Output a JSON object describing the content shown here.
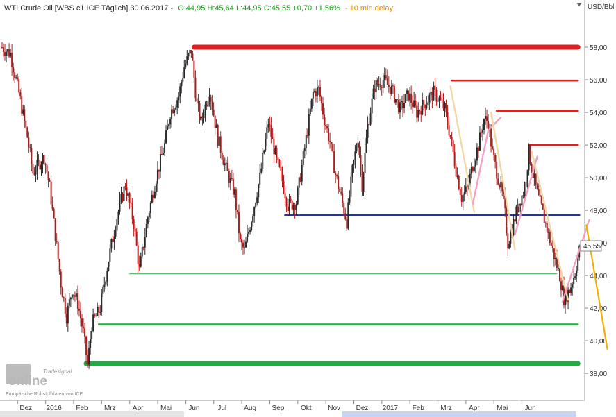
{
  "header": {
    "instrument": "WTI Crude Oil [WBS c1 ICE Täglich] 30.06.2017 -",
    "ohlc": "O:44,95 H:45,64 L:44,95 C:45,55 +0,70 +1,56%",
    "delay": "- 10 min delay",
    "unit": "USD/Bbl"
  },
  "logo": {
    "brand_small": "Tradesignal",
    "brand_big": "online",
    "source": "Europäische Rohstoffdaten von ICE"
  },
  "last_price_label": "45,55",
  "colors": {
    "up": "#2a2a2a",
    "down": "#b01c1c",
    "resistance": "#e02020",
    "support": "#22aa44",
    "pivot": "#2233aa",
    "trend_pink": "#f4a0c0",
    "trend_tan": "#f0d8a8",
    "trend_orange": "#f0b000"
  },
  "chart_data": {
    "type": "candlestick",
    "title": "WTI Crude Oil [WBS c1 ICE Täglich] 30.06.2017",
    "ylabel": "USD/Bbl",
    "ylim": [
      36.6,
      60.3
    ],
    "yticks": [
      "38,00",
      "40,00",
      "42,00",
      "44,00",
      "46,00",
      "48,00",
      "50,00",
      "52,00",
      "54,00",
      "56,00",
      "58,00"
    ],
    "xticks": [
      "Dez",
      "2016",
      "Feb",
      "Mrz",
      "Apr",
      "Mai",
      "Jun",
      "Jul",
      "Aug",
      "Sep",
      "Okt",
      "Nov",
      "Dez",
      "2017",
      "Feb",
      "Mrz",
      "Apr",
      "Mai",
      "Jun"
    ],
    "last": {
      "open": 44.95,
      "high": 45.64,
      "low": 44.95,
      "close": 45.55,
      "change": 0.7,
      "change_pct": 1.56
    },
    "price_path": [
      {
        "m": 0.0,
        "p": 58.0
      },
      {
        "m": 0.3,
        "p": 57.6
      },
      {
        "m": 0.6,
        "p": 55.2
      },
      {
        "m": 0.9,
        "p": 52.5
      },
      {
        "m": 1.1,
        "p": 50.3
      },
      {
        "m": 1.3,
        "p": 50.8
      },
      {
        "m": 1.5,
        "p": 51.3
      },
      {
        "m": 1.7,
        "p": 49.4
      },
      {
        "m": 1.9,
        "p": 46.5
      },
      {
        "m": 2.1,
        "p": 43.5
      },
      {
        "m": 2.3,
        "p": 41.5
      },
      {
        "m": 2.5,
        "p": 43.2
      },
      {
        "m": 2.7,
        "p": 42.3
      },
      {
        "m": 2.9,
        "p": 40.5
      },
      {
        "m": 3.05,
        "p": 38.5
      },
      {
        "m": 3.2,
        "p": 41.0
      },
      {
        "m": 3.5,
        "p": 42.0
      },
      {
        "m": 3.8,
        "p": 45.0
      },
      {
        "m": 4.1,
        "p": 47.6
      },
      {
        "m": 4.4,
        "p": 49.6
      },
      {
        "m": 4.7,
        "p": 47.2
      },
      {
        "m": 4.9,
        "p": 44.3
      },
      {
        "m": 5.2,
        "p": 47.6
      },
      {
        "m": 5.5,
        "p": 50.0
      },
      {
        "m": 5.8,
        "p": 52.0
      },
      {
        "m": 6.0,
        "p": 54.0
      },
      {
        "m": 6.3,
        "p": 55.0
      },
      {
        "m": 6.5,
        "p": 56.8
      },
      {
        "m": 6.75,
        "p": 57.8
      },
      {
        "m": 6.95,
        "p": 54.5
      },
      {
        "m": 7.1,
        "p": 53.4
      },
      {
        "m": 7.4,
        "p": 55.4
      },
      {
        "m": 7.7,
        "p": 52.4
      },
      {
        "m": 8.0,
        "p": 50.5
      },
      {
        "m": 8.3,
        "p": 49.0
      },
      {
        "m": 8.5,
        "p": 46.0
      },
      {
        "m": 8.65,
        "p": 45.5
      },
      {
        "m": 8.9,
        "p": 47.5
      },
      {
        "m": 9.2,
        "p": 50.0
      },
      {
        "m": 9.5,
        "p": 53.4
      },
      {
        "m": 9.8,
        "p": 51.0
      },
      {
        "m": 10.0,
        "p": 49.8
      },
      {
        "m": 10.2,
        "p": 48.3
      },
      {
        "m": 10.5,
        "p": 48.5
      },
      {
        "m": 10.8,
        "p": 51.8
      },
      {
        "m": 11.1,
        "p": 55.2
      },
      {
        "m": 11.3,
        "p": 55.4
      },
      {
        "m": 11.5,
        "p": 53.6
      },
      {
        "m": 11.7,
        "p": 52.2
      },
      {
        "m": 11.9,
        "p": 50.2
      },
      {
        "m": 12.1,
        "p": 48.8
      },
      {
        "m": 12.3,
        "p": 47.3
      },
      {
        "m": 12.5,
        "p": 50.4
      },
      {
        "m": 12.7,
        "p": 52.5
      },
      {
        "m": 12.85,
        "p": 49.6
      },
      {
        "m": 13.05,
        "p": 53.2
      },
      {
        "m": 13.3,
        "p": 55.6
      },
      {
        "m": 13.6,
        "p": 56.0
      },
      {
        "m": 13.9,
        "p": 55.4
      },
      {
        "m": 14.2,
        "p": 54.2
      },
      {
        "m": 14.5,
        "p": 55.1
      },
      {
        "m": 14.8,
        "p": 54.0
      },
      {
        "m": 15.1,
        "p": 54.6
      },
      {
        "m": 15.4,
        "p": 55.2
      },
      {
        "m": 15.6,
        "p": 54.8
      },
      {
        "m": 15.8,
        "p": 54.2
      },
      {
        "m": 16.0,
        "p": 52.5
      },
      {
        "m": 16.2,
        "p": 50.5
      },
      {
        "m": 16.4,
        "p": 48.8
      },
      {
        "m": 16.6,
        "p": 49.3
      },
      {
        "m": 16.8,
        "p": 50.8
      },
      {
        "m": 17.0,
        "p": 52.0
      },
      {
        "m": 17.2,
        "p": 53.6
      },
      {
        "m": 17.35,
        "p": 53.4
      },
      {
        "m": 17.5,
        "p": 51.5
      },
      {
        "m": 17.7,
        "p": 50.0
      },
      {
        "m": 17.9,
        "p": 48.6
      },
      {
        "m": 18.05,
        "p": 46.0
      },
      {
        "m": 18.25,
        "p": 47.2
      },
      {
        "m": 18.45,
        "p": 48.5
      },
      {
        "m": 18.65,
        "p": 49.3
      },
      {
        "m": 18.8,
        "p": 51.6
      },
      {
        "m": 18.95,
        "p": 50.2
      },
      {
        "m": 19.1,
        "p": 49.0
      },
      {
        "m": 19.3,
        "p": 47.8
      },
      {
        "m": 19.5,
        "p": 46.5
      },
      {
        "m": 19.7,
        "p": 45.2
      },
      {
        "m": 19.9,
        "p": 44.0
      },
      {
        "m": 20.05,
        "p": 42.6
      },
      {
        "m": 20.25,
        "p": 43.1
      },
      {
        "m": 20.45,
        "p": 44.2
      },
      {
        "m": 20.6,
        "p": 45.55
      }
    ],
    "horizontal_lines": [
      {
        "label": "resistance-58",
        "value": 58.0,
        "from_m": 6.85,
        "to_m": 20.55,
        "color": "resistance",
        "weight": "thick"
      },
      {
        "label": "resistance-56",
        "value": 55.95,
        "from_m": 16.05,
        "to_m": 20.55,
        "color": "resistance",
        "weight": "medium"
      },
      {
        "label": "resistance-54",
        "value": 54.1,
        "from_m": 17.65,
        "to_m": 20.55,
        "color": "resistance",
        "weight": "medium"
      },
      {
        "label": "resistance-52",
        "value": 52.0,
        "from_m": 18.8,
        "to_m": 20.55,
        "color": "resistance",
        "weight": "medium"
      },
      {
        "label": "pivot-47.7",
        "value": 47.7,
        "from_m": 10.1,
        "to_m": 20.6,
        "color": "pivot",
        "weight": "medium"
      },
      {
        "label": "support-44.1",
        "value": 44.1,
        "from_m": 4.55,
        "to_m": 19.8,
        "color": "support",
        "weight": "thin"
      },
      {
        "label": "support-41",
        "value": 41.0,
        "from_m": 3.45,
        "to_m": 20.55,
        "color": "support",
        "weight": "medium"
      },
      {
        "label": "support-38.6",
        "value": 38.6,
        "from_m": 3.0,
        "to_m": 20.55,
        "color": "support",
        "weight": "thick"
      }
    ],
    "trend_lines": [
      {
        "color": "trend_tan",
        "from": {
          "m": 16.0,
          "p": 55.6
        },
        "to": {
          "m": 16.85,
          "p": 47.9
        }
      },
      {
        "color": "trend_pink",
        "from": {
          "m": 16.8,
          "p": 48.4
        },
        "to": {
          "m": 17.35,
          "p": 52.9
        }
      },
      {
        "color": "trend_pink",
        "from": {
          "m": 17.35,
          "p": 52.9
        },
        "to": {
          "m": 17.8,
          "p": 53.7
        }
      },
      {
        "color": "trend_tan",
        "from": {
          "m": 17.45,
          "p": 54.0
        },
        "to": {
          "m": 18.3,
          "p": 45.6
        }
      },
      {
        "color": "trend_pink",
        "from": {
          "m": 18.3,
          "p": 46.5
        },
        "to": {
          "m": 19.1,
          "p": 51.3
        }
      },
      {
        "color": "trend_tan",
        "from": {
          "m": 18.9,
          "p": 51.6
        },
        "to": {
          "m": 20.2,
          "p": 42.5
        }
      },
      {
        "color": "trend_pink",
        "from": {
          "m": 20.0,
          "p": 42.4
        },
        "to": {
          "m": 20.95,
          "p": 47.4
        }
      },
      {
        "color": "trend_orange",
        "from": {
          "m": 20.85,
          "p": 47.1
        },
        "to": {
          "m": 21.6,
          "p": 39.5
        }
      }
    ]
  }
}
